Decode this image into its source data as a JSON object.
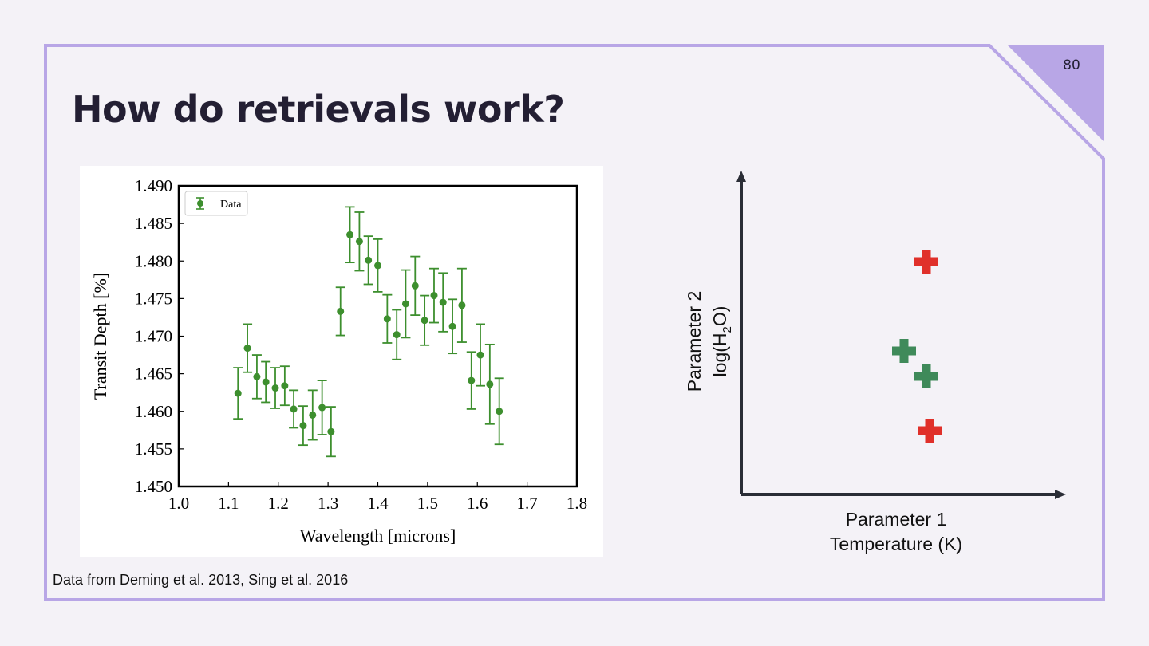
{
  "slide": {
    "title": "How do retrievals work?",
    "page_number": "80",
    "credit": "Data from Deming et al. 2013, Sing et al. 2016"
  },
  "colors": {
    "background": "#f4f2f7",
    "frame": "#b8a6e6",
    "corner": "#b8a6e6",
    "data_green": "#3d8f2e",
    "marker_red": "#e0302a",
    "marker_green": "#3f8a5a",
    "axis_dark": "#2a2d36"
  },
  "chart_data": [
    {
      "type": "scatter",
      "xlabel": "Wavelength [microns]",
      "ylabel": "Transit Depth [%]",
      "xlim": [
        1.0,
        1.8
      ],
      "ylim": [
        1.45,
        1.49
      ],
      "x_ticks": [
        "1.0",
        "1.1",
        "1.2",
        "1.3",
        "1.4",
        "1.5",
        "1.6",
        "1.7",
        "1.8"
      ],
      "y_ticks": [
        "1.450",
        "1.455",
        "1.460",
        "1.465",
        "1.470",
        "1.475",
        "1.480",
        "1.485",
        "1.490"
      ],
      "legend": {
        "entries": [
          "Data"
        ],
        "position": "top-left"
      },
      "grid": false,
      "series": [
        {
          "name": "Data",
          "points": [
            {
              "x": 1.119,
              "y": 1.4624,
              "err": 0.0034
            },
            {
              "x": 1.138,
              "y": 1.4684,
              "err": 0.0032
            },
            {
              "x": 1.157,
              "y": 1.4646,
              "err": 0.0029
            },
            {
              "x": 1.175,
              "y": 1.4639,
              "err": 0.0027
            },
            {
              "x": 1.194,
              "y": 1.4631,
              "err": 0.0027
            },
            {
              "x": 1.213,
              "y": 1.4634,
              "err": 0.0026
            },
            {
              "x": 1.231,
              "y": 1.4603,
              "err": 0.0025
            },
            {
              "x": 1.25,
              "y": 1.4581,
              "err": 0.0026
            },
            {
              "x": 1.269,
              "y": 1.4595,
              "err": 0.0033
            },
            {
              "x": 1.288,
              "y": 1.4605,
              "err": 0.0036
            },
            {
              "x": 1.306,
              "y": 1.4573,
              "err": 0.0033
            },
            {
              "x": 1.325,
              "y": 1.4733,
              "err": 0.0032
            },
            {
              "x": 1.344,
              "y": 1.4835,
              "err": 0.0037
            },
            {
              "x": 1.363,
              "y": 1.4826,
              "err": 0.0039
            },
            {
              "x": 1.381,
              "y": 1.4801,
              "err": 0.0032
            },
            {
              "x": 1.4,
              "y": 1.4794,
              "err": 0.0035
            },
            {
              "x": 1.419,
              "y": 1.4723,
              "err": 0.0032
            },
            {
              "x": 1.438,
              "y": 1.4702,
              "err": 0.0033
            },
            {
              "x": 1.456,
              "y": 1.4743,
              "err": 0.0045
            },
            {
              "x": 1.475,
              "y": 1.4767,
              "err": 0.0039
            },
            {
              "x": 1.494,
              "y": 1.4721,
              "err": 0.0033
            },
            {
              "x": 1.513,
              "y": 1.4754,
              "err": 0.0036
            },
            {
              "x": 1.531,
              "y": 1.4745,
              "err": 0.0039
            },
            {
              "x": 1.55,
              "y": 1.4713,
              "err": 0.0036
            },
            {
              "x": 1.569,
              "y": 1.4741,
              "err": 0.0049
            },
            {
              "x": 1.588,
              "y": 1.4641,
              "err": 0.0038
            },
            {
              "x": 1.606,
              "y": 1.4675,
              "err": 0.0041
            },
            {
              "x": 1.625,
              "y": 1.4636,
              "err": 0.0053
            },
            {
              "x": 1.644,
              "y": 1.46,
              "err": 0.0044
            }
          ]
        }
      ]
    },
    {
      "type": "scatter",
      "xlabel": [
        "Parameter 1",
        "Temperature (K)"
      ],
      "ylabel": [
        "Parameter 2",
        "log(H",
        "2",
        "O)"
      ],
      "x_ticks": [],
      "y_ticks": [],
      "grid": false,
      "markers": [
        {
          "color": "red",
          "x": 0.58,
          "y": 0.73
        },
        {
          "color": "green",
          "x": 0.51,
          "y": 0.45
        },
        {
          "color": "green",
          "x": 0.58,
          "y": 0.37
        },
        {
          "color": "red",
          "x": 0.59,
          "y": 0.2
        }
      ]
    }
  ]
}
